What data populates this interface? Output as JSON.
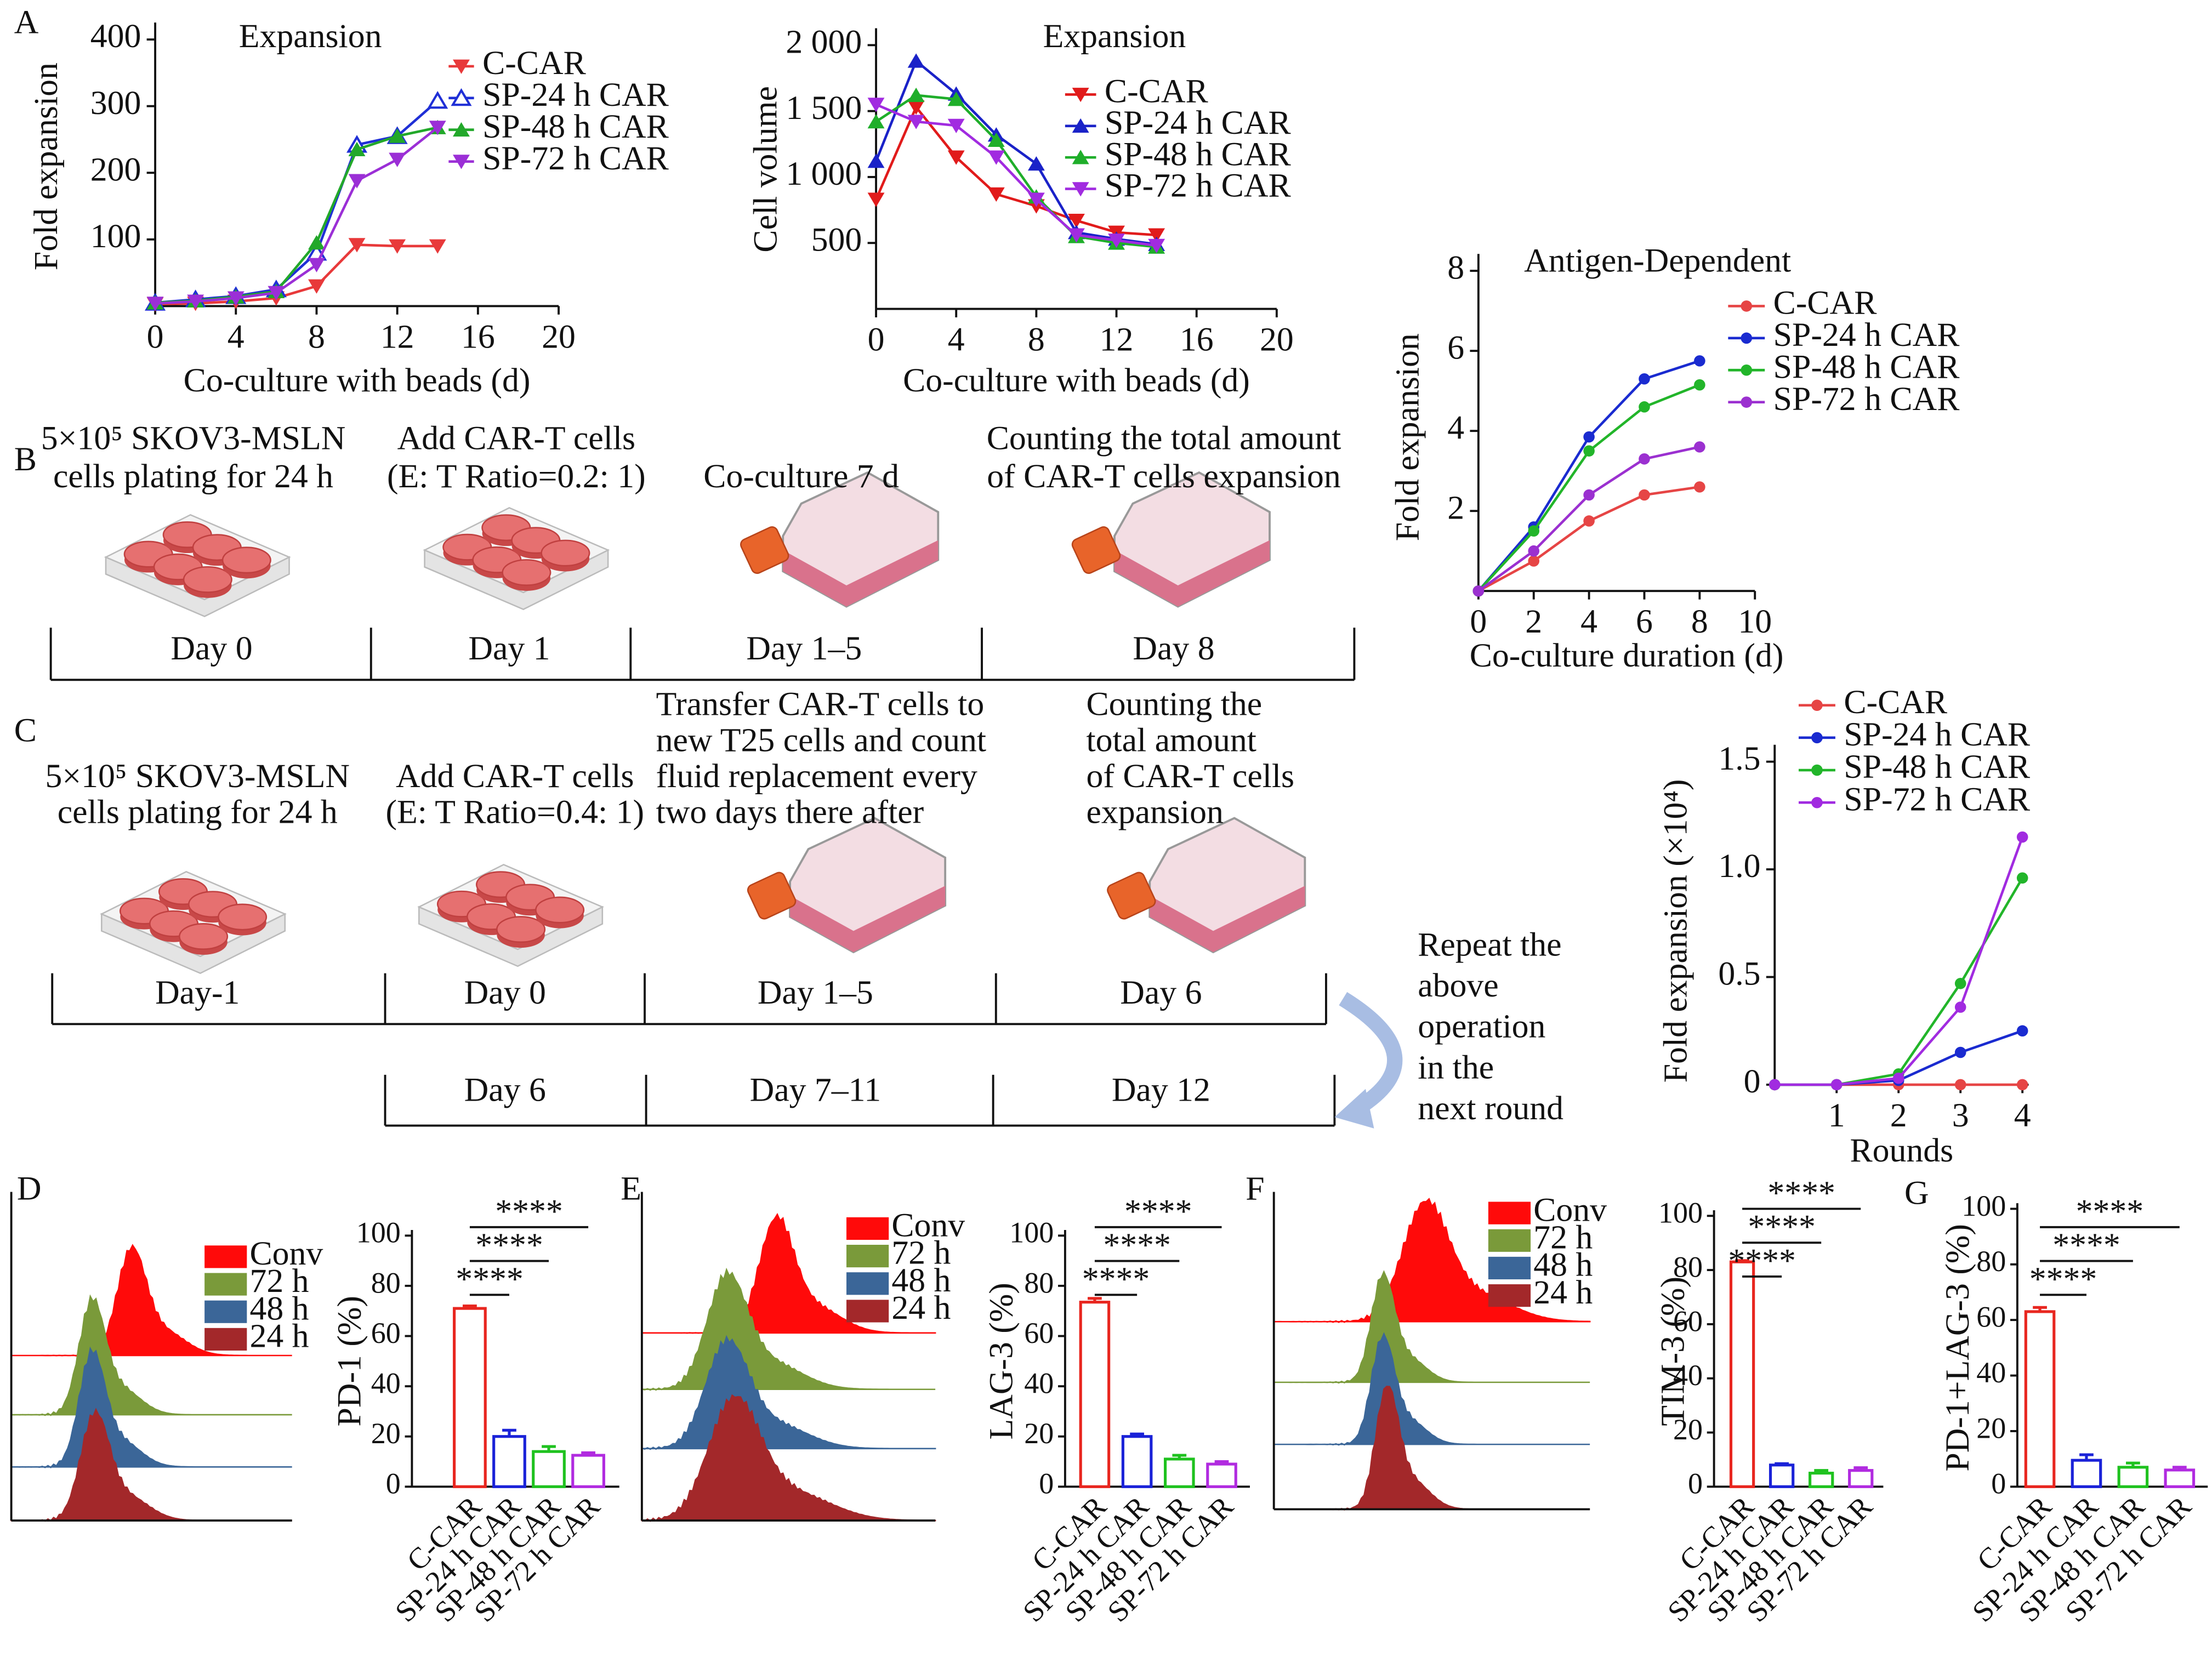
{
  "panels": [
    "A",
    "B",
    "C",
    "D",
    "E",
    "F",
    "G"
  ],
  "chart_data": [
    {
      "type": "line",
      "title": "Expansion",
      "xlabel": "Co-culture with beads (d)",
      "ylabel": "Fold expansion",
      "x": [
        0,
        2,
        4,
        6,
        8,
        10,
        12,
        14
      ],
      "xlim": [
        0,
        20
      ],
      "xticks": [
        0,
        4,
        8,
        12,
        16,
        20
      ],
      "ylim": [
        0,
        400
      ],
      "yticks": [
        100,
        200,
        300,
        400
      ],
      "series": [
        {
          "name": "C-CAR",
          "color": "#e8393a",
          "marker": "triangle-down",
          "values": [
            3,
            4,
            7,
            12,
            30,
            92,
            90,
            90
          ]
        },
        {
          "name": "SP-24 h CAR",
          "color": "#1f2fd6",
          "marker": "triangle-up-open",
          "values": [
            5,
            10,
            15,
            25,
            80,
            242,
            255,
            308
          ]
        },
        {
          "name": "SP-48 h CAR",
          "color": "#22a82a",
          "marker": "triangle-up",
          "values": [
            5,
            8,
            14,
            22,
            95,
            235,
            255,
            268
          ]
        },
        {
          "name": "SP-72 h CAR",
          "color": "#9b2fd6",
          "marker": "triangle-down",
          "values": [
            4,
            7,
            12,
            20,
            62,
            188,
            220,
            268
          ]
        }
      ]
    },
    {
      "type": "line",
      "title": "Expansion",
      "xlabel": "Co-culture with beads (d)",
      "ylabel": "Cell volume",
      "x": [
        0,
        2,
        4,
        6,
        8,
        10,
        12,
        14
      ],
      "xlim": [
        0,
        20
      ],
      "xticks": [
        0,
        4,
        8,
        12,
        16,
        20
      ],
      "ylim": [
        0,
        2000
      ],
      "yticks": [
        500,
        {
          "value": 1000,
          "label": "1 000"
        },
        {
          "value": 1500,
          "label": "1 500"
        },
        {
          "value": 2000,
          "label": "2 000"
        }
      ],
      "series": [
        {
          "name": "C-CAR",
          "color": "#e11b1b",
          "marker": "triangle-down",
          "values": [
            830,
            1530,
            1150,
            870,
            780,
            670,
            580,
            560
          ]
        },
        {
          "name": "SP-24 h CAR",
          "color": "#1a22c8",
          "marker": "triangle-up",
          "values": [
            1120,
            1880,
            1630,
            1320,
            1100,
            580,
            530,
            490
          ]
        },
        {
          "name": "SP-48 h CAR",
          "color": "#1fae2a",
          "marker": "triangle-up",
          "values": [
            1420,
            1620,
            1590,
            1280,
            850,
            550,
            500,
            470
          ]
        },
        {
          "name": "SP-72 h CAR",
          "color": "#a12be0",
          "marker": "triangle-down",
          "values": [
            1550,
            1420,
            1390,
            1150,
            830,
            560,
            520,
            480
          ]
        }
      ]
    },
    {
      "type": "line",
      "title": "Antigen-Dependent",
      "xlabel": "Co-culture duration (d)",
      "ylabel": "Fold expansion",
      "x": [
        0,
        2,
        4,
        6,
        8
      ],
      "xlim": [
        0,
        10
      ],
      "xticks": [
        0,
        2,
        4,
        6,
        8,
        10
      ],
      "ylim": [
        0,
        8
      ],
      "yticks": [
        2,
        4,
        6,
        8
      ],
      "series": [
        {
          "name": "C-CAR",
          "color": "#e64545",
          "marker": "circle",
          "values": [
            0,
            0.75,
            1.75,
            2.4,
            2.6
          ]
        },
        {
          "name": "SP-24 h CAR",
          "color": "#1a2bd0",
          "marker": "circle",
          "values": [
            0,
            1.6,
            3.85,
            5.3,
            5.75
          ]
        },
        {
          "name": "SP-48 h CAR",
          "color": "#22b52a",
          "marker": "circle",
          "values": [
            0,
            1.5,
            3.5,
            4.6,
            5.15
          ]
        },
        {
          "name": "SP-72 h CAR",
          "color": "#9b30d0",
          "marker": "circle",
          "values": [
            0,
            1.0,
            2.4,
            3.3,
            3.6
          ]
        }
      ]
    },
    {
      "type": "line",
      "xlabel": "Rounds",
      "ylabel": "Fold expansion (×10⁴)",
      "x": [
        0,
        1,
        2,
        3,
        4
      ],
      "xlim": [
        0,
        4.1
      ],
      "xticks": [
        1,
        2,
        3,
        4
      ],
      "ylim": [
        0,
        1.5
      ],
      "yticks": [
        0,
        0.5,
        {
          "value": 1,
          "label": "1.0"
        },
        1.5
      ],
      "series": [
        {
          "name": "C-CAR",
          "color": "#e64545",
          "marker": "circle",
          "values": [
            0,
            0,
            0,
            0,
            0
          ]
        },
        {
          "name": "SP-24 h CAR",
          "color": "#1a2bd0",
          "marker": "circle",
          "values": [
            0,
            0,
            0.02,
            0.15,
            0.25
          ]
        },
        {
          "name": "SP-48 h CAR",
          "color": "#22b52a",
          "marker": "circle",
          "values": [
            0,
            0,
            0.05,
            0.47,
            0.96
          ]
        },
        {
          "name": "SP-72 h CAR",
          "color": "#a12be0",
          "marker": "circle",
          "values": [
            0,
            0,
            0.03,
            0.36,
            1.15
          ]
        }
      ]
    },
    {
      "type": "bar",
      "ylabel": "PD-1 (%)",
      "categories": [
        "C-CAR",
        "SP-24 h CAR",
        "SP-48 h CAR",
        "SP-72 h CAR"
      ],
      "colors": [
        "#e8261f",
        "#1a22d8",
        "#1fc21f",
        "#b12be0"
      ],
      "values": [
        71,
        20,
        14,
        12.5
      ],
      "errors": [
        1,
        2.5,
        2,
        1
      ],
      "ylim": [
        0,
        100
      ],
      "yticks": [
        0,
        20,
        40,
        60,
        80,
        100
      ],
      "annotations": [
        "****",
        "****",
        "****"
      ]
    },
    {
      "type": "bar",
      "ylabel": "LAG-3 (%)",
      "categories": [
        "C-CAR",
        "SP-24 h CAR",
        "SP-48 h CAR",
        "SP-72 h CAR"
      ],
      "colors": [
        "#e8261f",
        "#1a22d8",
        "#1fc21f",
        "#b12be0"
      ],
      "values": [
        73.5,
        20,
        11,
        9
      ],
      "errors": [
        1.5,
        1,
        1.5,
        1
      ],
      "ylim": [
        0,
        100
      ],
      "yticks": [
        0,
        20,
        40,
        60,
        80,
        100
      ],
      "annotations": [
        "****",
        "****",
        "****"
      ]
    },
    {
      "type": "bar",
      "ylabel": "TIM-3 (%)",
      "categories": [
        "C-CAR",
        "SP-24 h CAR",
        "SP-48 h CAR",
        "SP-72 h CAR"
      ],
      "colors": [
        "#e8261f",
        "#1a22d8",
        "#1fc21f",
        "#b12be0"
      ],
      "values": [
        83,
        8,
        5,
        6
      ],
      "errors": [
        0.5,
        0.5,
        1,
        1
      ],
      "ylim": [
        0,
        100
      ],
      "yticks": [
        0,
        20,
        40,
        60,
        80,
        100
      ],
      "annotations": [
        "****",
        "****",
        "****"
      ]
    },
    {
      "type": "bar",
      "ylabel": "PD-1+LAG-3 (%)",
      "categories": [
        "C-CAR",
        "SP-24 h CAR",
        "SP-48 h CAR",
        "SP-72 h CAR"
      ],
      "colors": [
        "#e8261f",
        "#1a22d8",
        "#1fc21f",
        "#b12be0"
      ],
      "values": [
        63,
        9.5,
        7,
        6
      ],
      "errors": [
        1.5,
        2,
        1.5,
        1
      ],
      "ylim": [
        0,
        100
      ],
      "yticks": [
        0,
        20,
        40,
        60,
        80,
        100
      ],
      "annotations": [
        "****",
        "****",
        "****"
      ]
    }
  ],
  "protocols": [
    {
      "steps": [
        [
          "5×10⁵ SKOV3-MSLN",
          "cells plating for 24 h"
        ],
        [
          "Add CAR-T cells",
          "(E: T Ratio=0.2: 1)"
        ],
        [
          "Co-culture  7  d"
        ],
        [
          "Counting the total amount",
          "of CAR-T cells expansion"
        ]
      ],
      "days": [
        "Day 0",
        "Day 1",
        "Day 1–5",
        "Day 8"
      ]
    },
    {
      "steps": [
        [
          "5×10⁵ SKOV3-MSLN",
          "cells plating for 24 h"
        ],
        [
          "Add CAR-T cells",
          "(E: T Ratio=0.4: 1)"
        ],
        [
          "Transfer CAR-T cells to",
          "new T25 cells and count",
          "fluid replacement every",
          "two days there after"
        ],
        [
          "Counting the",
          "total amount",
          "of CAR-T cells",
          "expansion"
        ]
      ],
      "days": [
        "Day-1",
        "Day 0",
        "Day 1–5",
        "Day 6"
      ],
      "next_days": [
        "Day 6",
        "Day 7–11",
        "Day 12"
      ],
      "repeat": [
        "Repeat the",
        "above",
        "operation",
        "in the",
        "next round"
      ]
    }
  ],
  "histograms": [
    {
      "legend": [
        "Conv",
        "72 h",
        "48 h",
        "24 h"
      ],
      "colors": [
        "#ff0a0a",
        "#7a9a3a",
        "#3b6698",
        "#a3282a"
      ]
    },
    {
      "legend": [
        "Conv",
        "72 h",
        "48 h",
        "24 h"
      ],
      "colors": [
        "#ff0a0a",
        "#7a9a3a",
        "#3b6698",
        "#a3282a"
      ]
    },
    {
      "legend": [
        "Conv",
        "72 h",
        "48 h",
        "24 h"
      ],
      "colors": [
        "#ff0a0a",
        "#7a9a3a",
        "#3b6698",
        "#a3282a"
      ]
    }
  ]
}
